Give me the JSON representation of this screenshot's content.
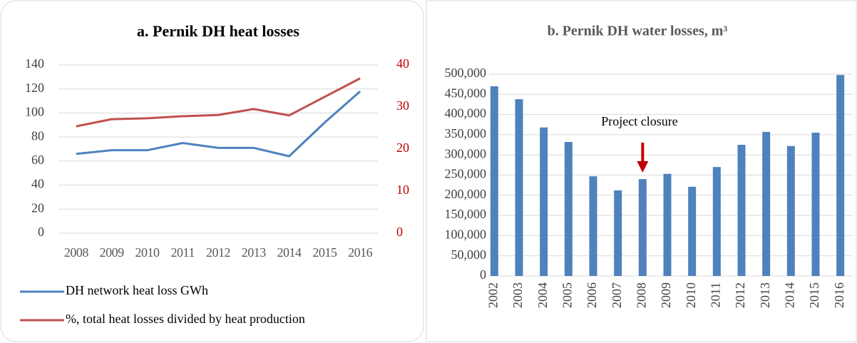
{
  "chart_data": [
    {
      "type": "line",
      "title": "a. Pernik DH heat losses",
      "categories": [
        "2008",
        "2009",
        "2010",
        "2011",
        "2012",
        "2013",
        "2014",
        "2015",
        "2016"
      ],
      "ylim": [
        0,
        140
      ],
      "yticks": [
        0,
        20,
        40,
        60,
        80,
        100,
        120,
        140
      ],
      "y2lim": [
        0,
        40
      ],
      "y2ticks": [
        0,
        10,
        20,
        30,
        40
      ],
      "grid": true,
      "legend": "bottom",
      "series": [
        {
          "name": "DH network heat loss  GWh",
          "color": "#4f81bd",
          "values": [
            66,
            69,
            69,
            75,
            71,
            71,
            64,
            92,
            118
          ]
        },
        {
          "name": "%, total heat losses divided by heat production",
          "color": "#c0504d",
          "axis": "y2",
          "values": [
            25.4,
            27.1,
            27.3,
            27.8,
            28.1,
            29.5,
            28,
            32.4,
            36.8
          ]
        }
      ]
    },
    {
      "type": "bar",
      "title": "b. Pernik DH water losses, m³",
      "annotation": "Project closure",
      "categories": [
        "2002",
        "2003",
        "2004",
        "2005",
        "2006",
        "2007",
        "2008",
        "2009",
        "2010",
        "2011",
        "2012",
        "2013",
        "2014",
        "2015",
        "2016"
      ],
      "values": [
        470000,
        438000,
        368000,
        332000,
        247000,
        212000,
        240000,
        253000,
        221000,
        270000,
        325000,
        357000,
        322000,
        355000,
        498000
      ],
      "color": "#4f81bd",
      "ylim": [
        0,
        500000
      ],
      "yticks": [
        0,
        {
          "value": 50000,
          "label": "50,000"
        },
        {
          "value": 100000,
          "label": "100,000"
        },
        {
          "value": 150000,
          "label": "150,000"
        },
        {
          "value": 200000,
          "label": "200,000"
        },
        {
          "value": 250000,
          "label": "250,000"
        },
        {
          "value": 300000,
          "label": "300,000"
        },
        {
          "value": 350000,
          "label": "350,000"
        },
        {
          "value": 400000,
          "label": "400,000"
        },
        {
          "value": 450000,
          "label": "450,000"
        },
        {
          "value": 500000,
          "label": "500,000"
        }
      ],
      "grid": true
    }
  ]
}
